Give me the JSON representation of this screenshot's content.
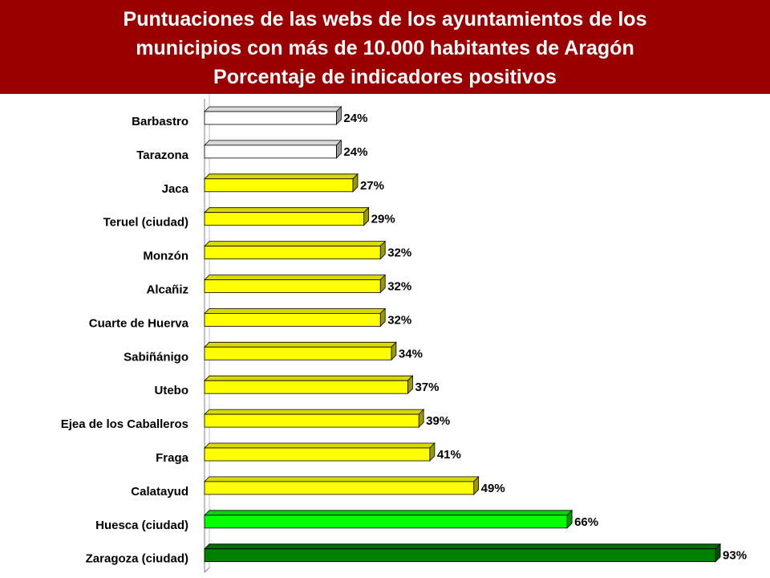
{
  "title": {
    "line1": "Puntuaciones de las webs de los ayuntamientos de los",
    "line2": "municipios con más de 10.000 habitantes de Aragón",
    "line3": "Porcentaje de indicadores positivos"
  },
  "colors": {
    "title_background": "#9b0000",
    "title_text": "#ffffff",
    "white_bar": "#ffffff",
    "yellow_bar": "#ffff00",
    "light_green_bar": "#00ff00",
    "dark_green_bar": "#008000"
  },
  "chart_data": {
    "type": "bar",
    "orientation": "horizontal",
    "style": "3d",
    "title": "Puntuaciones de las webs de los ayuntamientos de los municipios con más de 10.000 habitantes de Aragón — Porcentaje de indicadores positivos",
    "xlim": [
      0,
      100
    ],
    "unit": "%",
    "grid": false,
    "categories": [
      "Barbastro",
      "Tarazona",
      "Jaca",
      "Teruel (ciudad)",
      "Monzón",
      "Alcañiz",
      "Cuarte de Huerva",
      "Sabiñánigo",
      "Utebo",
      "Ejea de los Caballeros",
      "Fraga",
      "Calatayud",
      "Huesca (ciudad)",
      "Zaragoza (ciudad)"
    ],
    "values": [
      24,
      24,
      27,
      29,
      32,
      32,
      32,
      34,
      37,
      39,
      41,
      49,
      66,
      93
    ],
    "labels": [
      "24%",
      "24%",
      "27%",
      "29%",
      "32%",
      "32%",
      "32%",
      "34%",
      "37%",
      "39%",
      "41%",
      "49%",
      "66%",
      "93%"
    ],
    "bar_colors": [
      "#ffffff",
      "#ffffff",
      "#ffff00",
      "#ffff00",
      "#ffff00",
      "#ffff00",
      "#ffff00",
      "#ffff00",
      "#ffff00",
      "#ffff00",
      "#ffff00",
      "#ffff00",
      "#00ff00",
      "#008000"
    ]
  }
}
